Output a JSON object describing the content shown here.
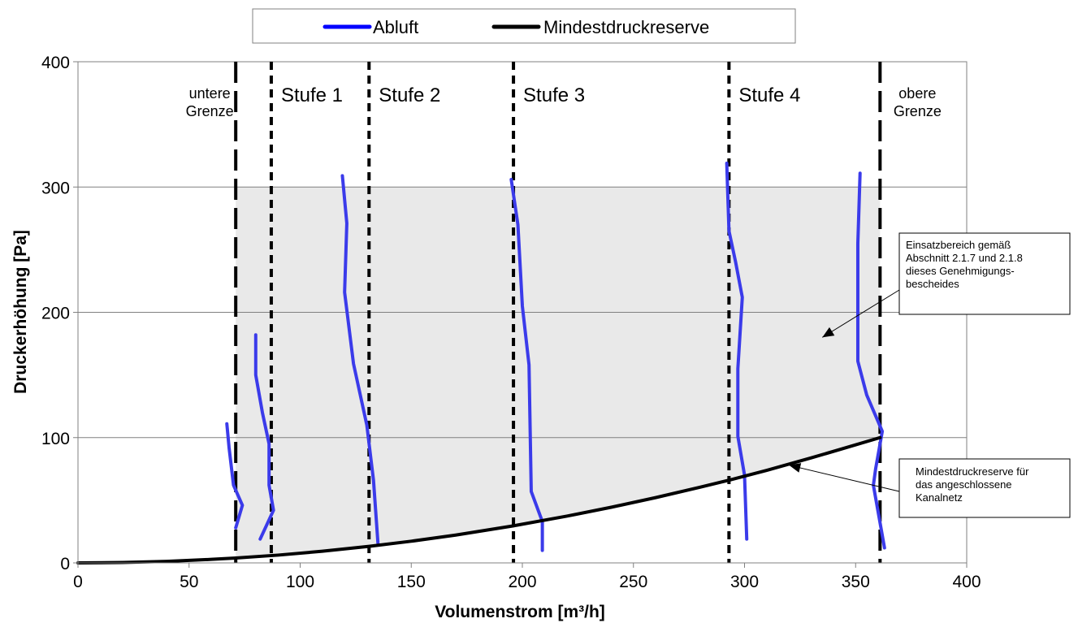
{
  "chart_data": {
    "type": "line",
    "xlabel": "Volumenstrom [m³/h]",
    "ylabel": "Druckerhöhung [Pa]",
    "xlim": [
      0,
      400
    ],
    "ylim": [
      0,
      400
    ],
    "xticks": [
      0,
      50,
      100,
      150,
      200,
      250,
      300,
      350,
      400
    ],
    "yticks": [
      0,
      100,
      200,
      300,
      400
    ],
    "grid": "horizontal",
    "legend_placement": "top-center",
    "legend": [
      {
        "label": "Abluft",
        "color": "#0000ff"
      },
      {
        "label": "Mindestdruckreserve",
        "color": "#000000"
      }
    ],
    "colors": {
      "abluft": "#3b3bea",
      "reserve": "#000000",
      "area_fill": "#e9e9e9",
      "plot_bg": "#ffffff",
      "gridline": "#808080"
    },
    "series": [
      {
        "name": "Abluft",
        "points": [
          [
            67,
            111
          ],
          [
            68,
            92
          ],
          [
            70,
            62
          ],
          [
            74,
            46
          ],
          [
            71,
            28
          ]
        ]
      },
      {
        "name": "Abluft",
        "points": [
          [
            80,
            182
          ],
          [
            80,
            150
          ],
          [
            83,
            120
          ],
          [
            86,
            95
          ],
          [
            86,
            62
          ],
          [
            88,
            42
          ],
          [
            82,
            19
          ]
        ]
      },
      {
        "name": "Abluft",
        "points": [
          [
            119,
            309
          ],
          [
            121,
            271
          ],
          [
            120,
            216
          ],
          [
            124,
            159
          ],
          [
            130,
            110
          ],
          [
            133,
            66
          ],
          [
            135,
            16
          ]
        ]
      },
      {
        "name": "Abluft",
        "points": [
          [
            195,
            306
          ],
          [
            198,
            270
          ],
          [
            200,
            205
          ],
          [
            203,
            158
          ],
          [
            204,
            57
          ],
          [
            209,
            33
          ],
          [
            209,
            10
          ]
        ]
      },
      {
        "name": "Abluft",
        "points": [
          [
            292,
            319
          ],
          [
            293,
            265
          ],
          [
            296,
            240
          ],
          [
            299,
            212
          ],
          [
            297,
            155
          ],
          [
            297,
            101
          ],
          [
            300,
            70
          ],
          [
            301,
            19
          ]
        ]
      },
      {
        "name": "Abluft",
        "points": [
          [
            352,
            311
          ],
          [
            351,
            255
          ],
          [
            351,
            161
          ],
          [
            355,
            134
          ],
          [
            362,
            105
          ],
          [
            359,
            75
          ],
          [
            358,
            62
          ],
          [
            360,
            42
          ],
          [
            363,
            12
          ]
        ]
      },
      {
        "name": "Mindestdruckreserve",
        "points": [
          [
            0,
            0
          ],
          [
            20,
            0.3
          ],
          [
            40,
            1.2
          ],
          [
            60,
            2.8
          ],
          [
            71,
            3.9
          ],
          [
            90,
            6.2
          ],
          [
            110,
            9.3
          ],
          [
            131,
            13.2
          ],
          [
            150,
            17.3
          ],
          [
            170,
            22.2
          ],
          [
            196,
            29.6
          ],
          [
            220,
            37.3
          ],
          [
            240,
            44.4
          ],
          [
            260,
            52.1
          ],
          [
            280,
            60.4
          ],
          [
            293,
            66.0
          ],
          [
            310,
            73.9
          ],
          [
            330,
            83.8
          ],
          [
            345,
            91.6
          ],
          [
            361,
            100
          ]
        ]
      }
    ],
    "einsatzbereich": {
      "x_min": 71,
      "x_max": 361,
      "y_max": 300,
      "lower_bound": "Mindestdruckreserve"
    },
    "reference_lines": [
      {
        "x": 71,
        "label": "untere\nGrenze",
        "style": "long-dash"
      },
      {
        "x": 87,
        "label": "Stufe 1",
        "style": "short-dash"
      },
      {
        "x": 131,
        "label": "Stufe 2",
        "style": "short-dash"
      },
      {
        "x": 196,
        "label": "Stufe 3",
        "style": "short-dash"
      },
      {
        "x": 293,
        "label": "Stufe 4",
        "style": "short-dash"
      },
      {
        "x": 361,
        "label": "obere\nGrenze",
        "style": "long-dash"
      }
    ],
    "annotations": [
      {
        "text": "Einsatzbereich gemäß\nAbschnitt 2.1.7 und 2.1.8\ndieses Genehmigungs-\nbescheides",
        "target": [
          335,
          180
        ]
      },
      {
        "text": "Mindestdruckreserve für\ndas angeschlossene\nKanalnetz",
        "target": [
          320,
          78
        ]
      }
    ]
  }
}
